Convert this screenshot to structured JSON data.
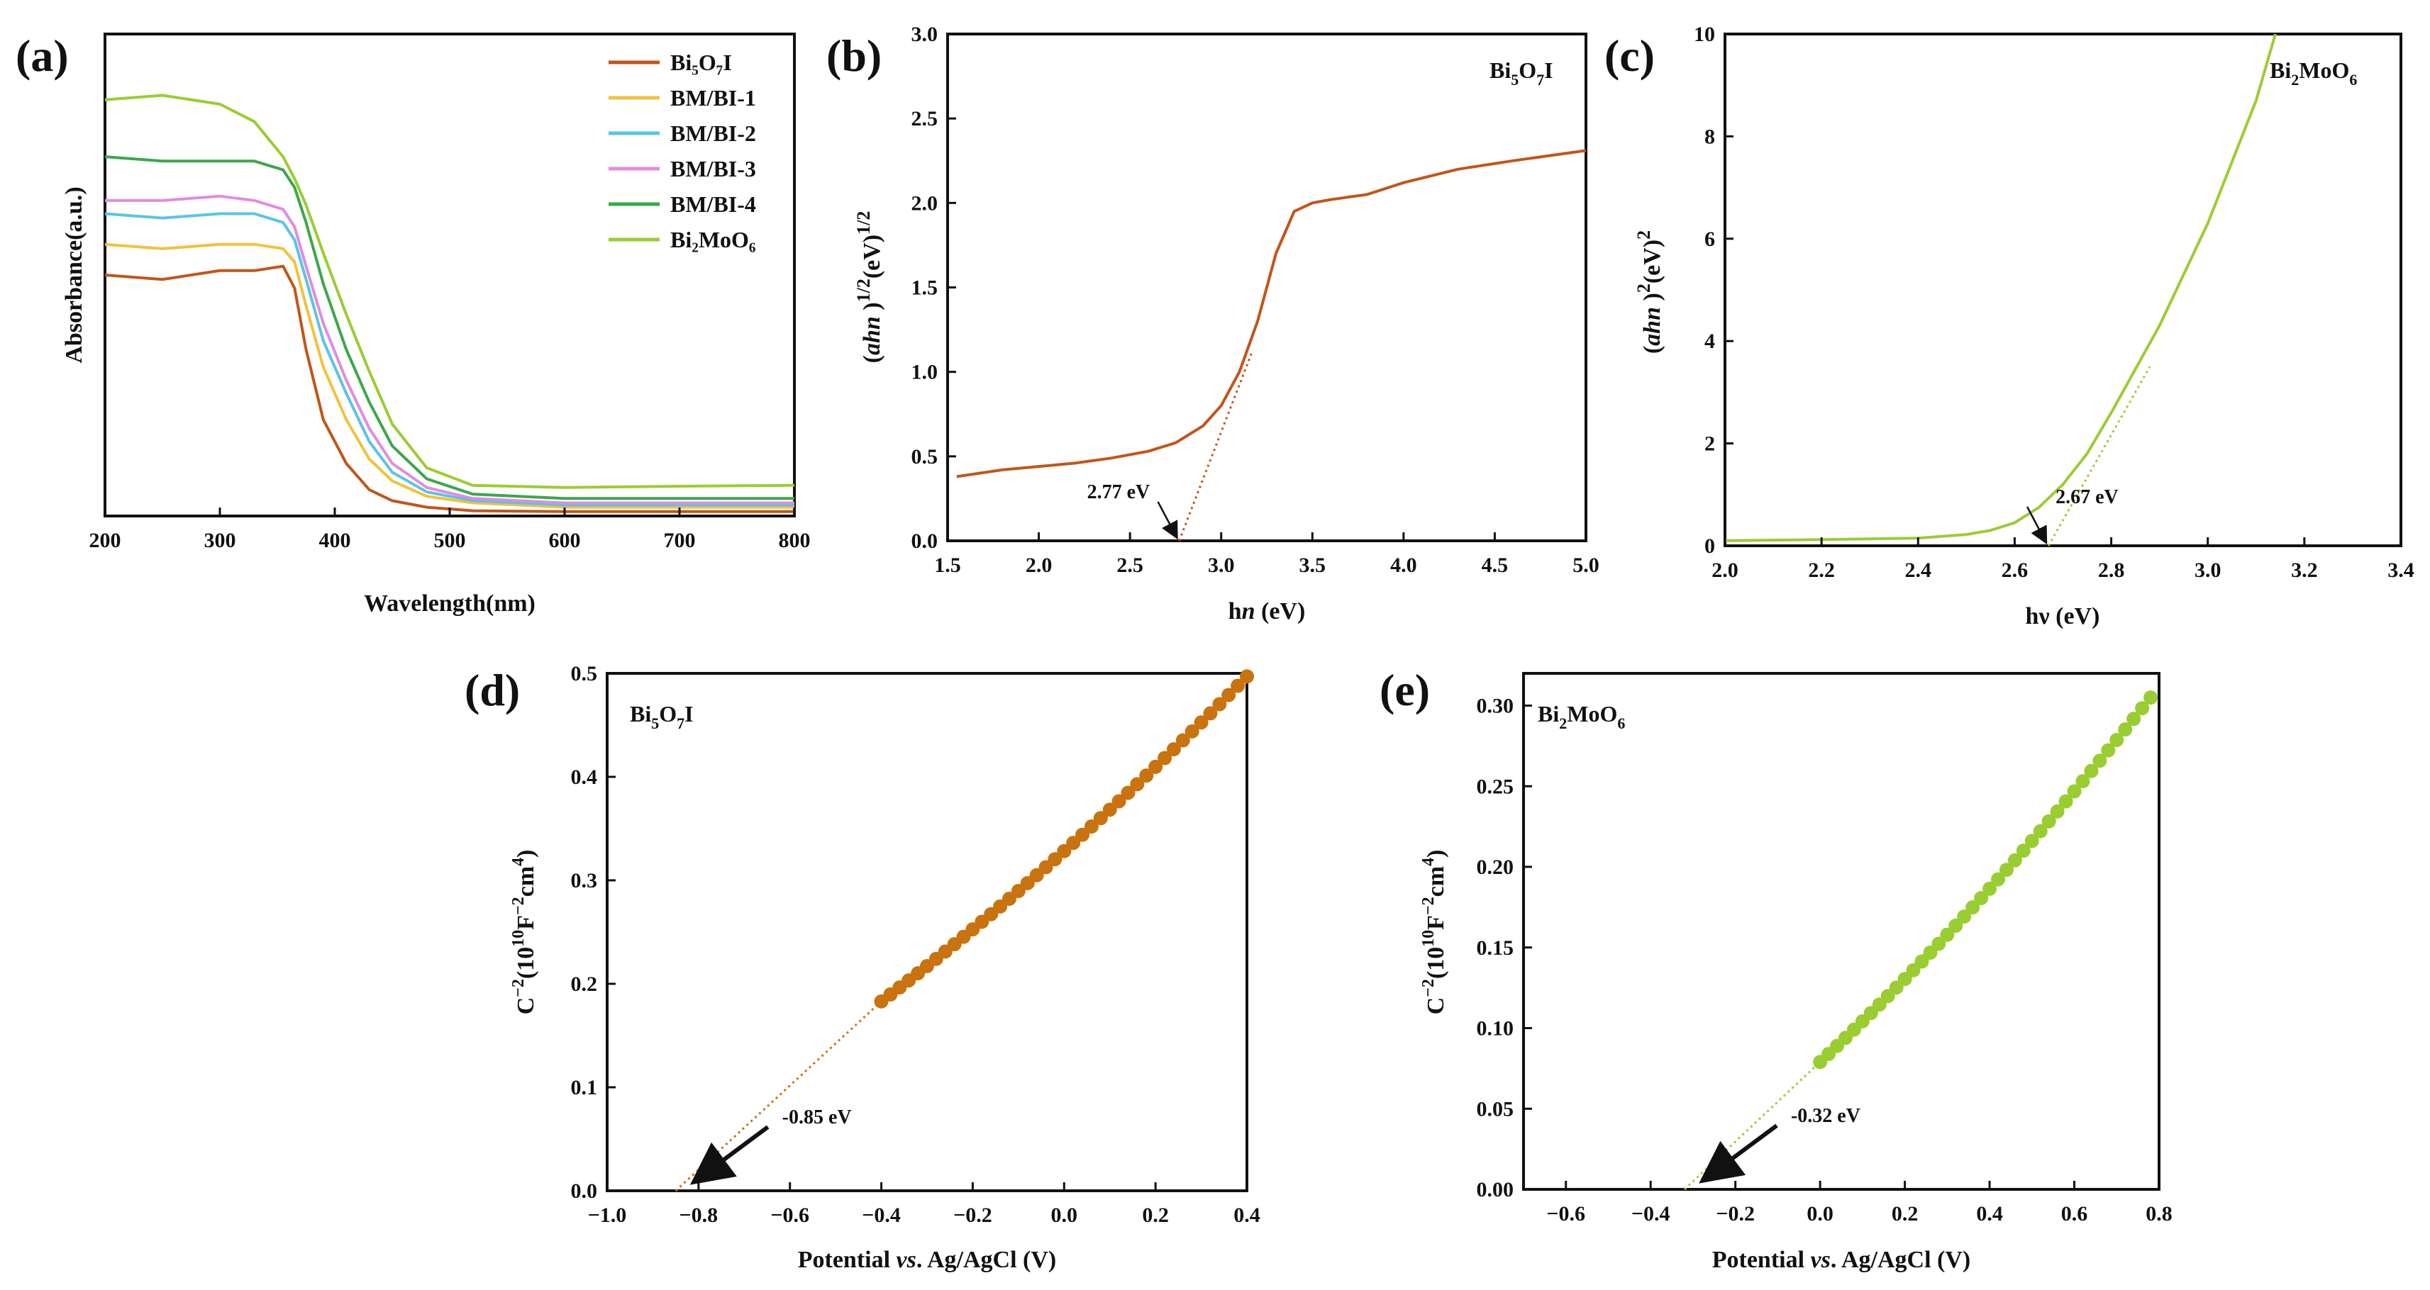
{
  "chart_data": [
    {
      "panel": "(a)",
      "type": "line",
      "title": "",
      "xlabel": "Wavelength(nm)",
      "ylabel": "Absorbance(a.u.)",
      "xlim": [
        200,
        800
      ],
      "ylim": [
        0,
        1.1
      ],
      "x_ticks": [
        "200",
        "300",
        "400",
        "500",
        "600",
        "700",
        "800"
      ],
      "legend_position": "top-right",
      "x": [
        200,
        250,
        300,
        330,
        355,
        365,
        375,
        390,
        410,
        430,
        450,
        480,
        520,
        600,
        700,
        800
      ],
      "series": [
        {
          "name": "Bi₅O₇I",
          "color": "#c2551a",
          "values": [
            0.55,
            0.54,
            0.56,
            0.56,
            0.57,
            0.52,
            0.38,
            0.22,
            0.12,
            0.06,
            0.035,
            0.02,
            0.012,
            0.01,
            0.01,
            0.01
          ]
        },
        {
          "name": "BM/BI-1",
          "color": "#f2c23c",
          "values": [
            0.62,
            0.61,
            0.62,
            0.62,
            0.61,
            0.58,
            0.48,
            0.34,
            0.22,
            0.13,
            0.08,
            0.045,
            0.03,
            0.02,
            0.02,
            0.02
          ]
        },
        {
          "name": "BM/BI-2",
          "color": "#5cc3e8",
          "values": [
            0.69,
            0.68,
            0.69,
            0.69,
            0.67,
            0.63,
            0.54,
            0.4,
            0.28,
            0.17,
            0.1,
            0.055,
            0.035,
            0.025,
            0.025,
            0.025
          ]
        },
        {
          "name": "BM/BI-3",
          "color": "#e08ce0",
          "values": [
            0.72,
            0.72,
            0.73,
            0.72,
            0.7,
            0.66,
            0.57,
            0.44,
            0.31,
            0.2,
            0.12,
            0.065,
            0.04,
            0.03,
            0.03,
            0.03
          ]
        },
        {
          "name": "BM/BI-4",
          "color": "#3aa84a",
          "values": [
            0.82,
            0.81,
            0.81,
            0.81,
            0.79,
            0.75,
            0.67,
            0.53,
            0.38,
            0.26,
            0.16,
            0.085,
            0.05,
            0.04,
            0.04,
            0.04
          ]
        },
        {
          "name": "Bi₂MoO₆",
          "color": "#9acd32",
          "values": [
            0.95,
            0.96,
            0.94,
            0.9,
            0.82,
            0.77,
            0.71,
            0.6,
            0.46,
            0.33,
            0.21,
            0.11,
            0.07,
            0.065,
            0.068,
            0.07
          ]
        }
      ]
    },
    {
      "panel": "(b)",
      "type": "line",
      "xlabel": "hn  (eV)",
      "ylabel": "(ahn )^1/2(eV)^1/2",
      "inset_label": "Bi₅O₇I",
      "xlim": [
        1.5,
        5.0
      ],
      "ylim": [
        0.0,
        3.0
      ],
      "x_ticks": [
        "1.5",
        "2.0",
        "2.5",
        "3.0",
        "3.5",
        "4.0",
        "4.5",
        "5.0"
      ],
      "y_ticks": [
        "0.0",
        "0.5",
        "1.0",
        "1.5",
        "2.0",
        "2.5",
        "3.0"
      ],
      "series": [
        {
          "name": "Bi₅O₇I",
          "color": "#c2551a",
          "x": [
            1.55,
            1.8,
            2.0,
            2.2,
            2.4,
            2.6,
            2.75,
            2.9,
            3.0,
            3.1,
            3.2,
            3.3,
            3.4,
            3.5,
            3.6,
            3.8,
            4.0,
            4.3,
            4.6,
            5.0
          ],
          "values": [
            0.38,
            0.42,
            0.44,
            0.46,
            0.49,
            0.53,
            0.58,
            0.68,
            0.8,
            1.0,
            1.3,
            1.7,
            1.95,
            2.0,
            2.02,
            2.05,
            2.12,
            2.2,
            2.25,
            2.31
          ]
        }
      ],
      "fit_line": {
        "x": [
          2.77,
          3.17
        ],
        "values": [
          0.0,
          1.12
        ]
      },
      "annotation": {
        "text": "2.77 eV",
        "x": 2.77,
        "y": 0.0
      }
    },
    {
      "panel": "(c)",
      "type": "line",
      "xlabel": "hν  (eV)",
      "ylabel": "(ahn )^2(eV)^2",
      "inset_label": "Bi₂MoO₆",
      "xlim": [
        2.0,
        3.4
      ],
      "ylim": [
        0,
        10
      ],
      "x_ticks": [
        "2.0",
        "2.2",
        "2.4",
        "2.6",
        "2.8",
        "3.0",
        "3.2",
        "3.4"
      ],
      "y_ticks": [
        "0",
        "2",
        "4",
        "6",
        "8",
        "10"
      ],
      "series": [
        {
          "name": "Bi₂MoO₆",
          "color": "#9acd32",
          "x": [
            2.0,
            2.2,
            2.4,
            2.5,
            2.55,
            2.6,
            2.65,
            2.7,
            2.75,
            2.8,
            2.9,
            3.0,
            3.1,
            3.14
          ],
          "values": [
            0.1,
            0.12,
            0.15,
            0.22,
            0.3,
            0.45,
            0.75,
            1.2,
            1.8,
            2.6,
            4.3,
            6.3,
            8.7,
            10.0
          ]
        }
      ],
      "fit_line": {
        "x": [
          2.67,
          2.88
        ],
        "values": [
          0.0,
          3.5
        ]
      },
      "annotation": {
        "text": "2.67 eV",
        "x": 2.67,
        "y": 0.0
      }
    },
    {
      "panel": "(d)",
      "type": "scatter",
      "xlabel": "Potential vs. Ag/AgCl (V)",
      "ylabel": "C^-2(10^10F^-2cm^4)",
      "inset_label": "Bi₅O₇I",
      "xlim": [
        -1.0,
        0.4
      ],
      "ylim": [
        0.0,
        0.5
      ],
      "x_ticks": [
        "−1.0",
        "−0.8",
        "−0.6",
        "−0.4",
        "−0.2",
        "0.0",
        "0.2",
        "0.4"
      ],
      "y_ticks": [
        "0.0",
        "0.1",
        "0.2",
        "0.3",
        "0.4",
        "0.5"
      ],
      "series": [
        {
          "name": "Bi₅O₇I",
          "color": "#c8730f",
          "x_start": -0.4,
          "x_end": 0.4,
          "count": 41,
          "y_start": 0.183,
          "y_end": 0.497
        }
      ],
      "fit_line": {
        "x": [
          -0.85,
          -0.4
        ],
        "values": [
          0.0,
          0.183
        ]
      },
      "annotation": {
        "text": "-0.85 eV",
        "x": -0.85,
        "y": 0.0
      }
    },
    {
      "panel": "(e)",
      "type": "scatter",
      "xlabel": "Potential vs. Ag/AgCl (V)",
      "ylabel": "C^-2(10^10F^-2cm^4)",
      "inset_label": "Bi₂MoO₆",
      "xlim": [
        -0.7,
        0.8
      ],
      "ylim": [
        0.0,
        0.32
      ],
      "x_ticks": [
        "−0.6",
        "−0.4",
        "−0.2",
        "0.0",
        "0.2",
        "0.4",
        "0.6",
        "0.8"
      ],
      "y_ticks": [
        "0.00",
        "0.05",
        "0.10",
        "0.15",
        "0.20",
        "0.25",
        "0.30"
      ],
      "series": [
        {
          "name": "Bi₂MoO₆",
          "color": "#9acd32",
          "x_start": 0.0,
          "x_end": 0.78,
          "count": 40,
          "y_start": 0.079,
          "y_end": 0.305
        }
      ],
      "fit_line": {
        "x": [
          -0.32,
          0.0
        ],
        "values": [
          0.0,
          0.079
        ]
      },
      "annotation": {
        "text": "-0.32 eV",
        "x": -0.32,
        "y": 0.0
      }
    }
  ],
  "panel_labels": {
    "a": "(a)",
    "b": "(b)",
    "c": "(c)",
    "d": "(d)",
    "e": "(e)"
  },
  "texts": {
    "a_xlabel": "Wavelength(nm)",
    "a_ylabel": "Absorbance(a.u.)",
    "b_xlabel": "hn  (eV)",
    "c_xlabel": "hν  (eV)",
    "d_xlabel": "Potential vs. Ag/AgCl (V)",
    "e_xlabel": "Potential vs. Ag/AgCl (V)",
    "b_annot": "2.77 eV",
    "c_annot": "2.67 eV",
    "d_annot": "-0.85 eV",
    "e_annot": "-0.32 eV",
    "legend": [
      "Bi₅O₇I",
      "BM/BI-1",
      "BM/BI-2",
      "BM/BI-3",
      "BM/BI-4",
      "Bi₂MoO₆"
    ]
  }
}
